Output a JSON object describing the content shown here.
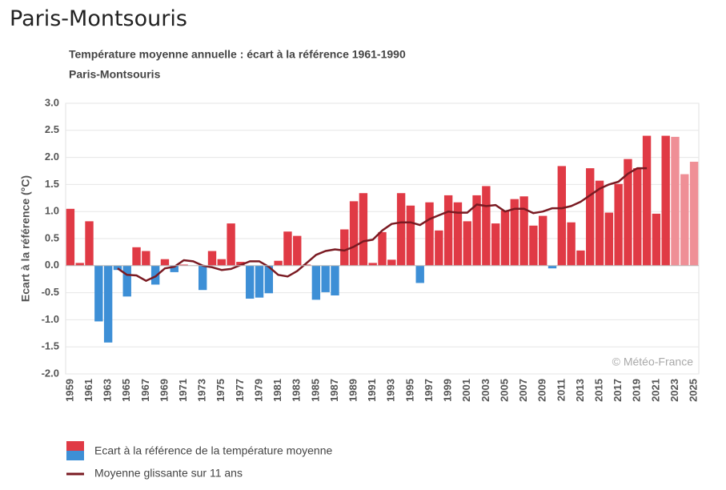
{
  "header": {
    "title": "Paris-Montsouris"
  },
  "chart_data": {
    "type": "bar",
    "title": "Température moyenne annuelle : écart à la référence 1961-1990",
    "subtitle": "Paris-Montsouris",
    "y_label": "Ecart à la référence (°C)",
    "annotation": "© Météo-France",
    "categories": [
      "1959",
      null,
      "1961",
      null,
      "1963",
      null,
      "1965",
      null,
      "1967",
      null,
      "1969",
      null,
      "1971",
      null,
      "1973",
      null,
      "1975",
      null,
      "1977",
      null,
      "1979",
      null,
      "1981",
      null,
      "1983",
      null,
      "1985",
      null,
      "1987",
      null,
      "1989",
      null,
      "1991",
      null,
      "1993",
      null,
      "1995",
      null,
      "1997",
      null,
      "1999",
      null,
      "2001",
      null,
      "2003",
      null,
      "2005",
      null,
      "2007",
      null,
      "2009",
      null,
      "2011",
      null,
      "2013",
      null,
      "2015",
      null,
      "2017",
      null,
      "2019",
      null,
      "2021",
      null,
      "2023",
      null,
      "2025"
    ],
    "series": [
      {
        "name": "Ecart à la référence de la température moyenne",
        "legend_colors": [
          "#e03a45",
          "#3d8fd6"
        ],
        "values": [
          1.05,
          0.05,
          0.82,
          -1.03,
          -1.42,
          -0.08,
          -0.57,
          0.34,
          0.27,
          -0.35,
          0.12,
          -0.12,
          0.02,
          0.0,
          -0.45,
          0.27,
          0.12,
          0.78,
          0.07,
          -0.61,
          -0.59,
          -0.51,
          0.09,
          0.63,
          0.55,
          0.02,
          -0.63,
          -0.49,
          -0.55,
          0.67,
          1.19,
          1.34,
          0.05,
          0.62,
          0.11,
          1.34,
          1.11,
          -0.32,
          1.17,
          0.65,
          1.3,
          1.17,
          0.82,
          1.3,
          1.47,
          0.78,
          1.02,
          1.23,
          1.28,
          0.74,
          0.92,
          -0.05,
          1.84,
          0.8,
          0.28,
          1.8,
          1.57,
          0.98,
          1.51,
          1.97,
          1.8,
          2.4,
          0.96,
          2.4,
          2.38,
          1.69,
          1.92
        ],
        "colors": [
          "#e03a45",
          "#e03a45",
          "#e03a45",
          "#3d8fd6",
          "#3d8fd6",
          "#3d8fd6",
          "#3d8fd6",
          "#e03a45",
          "#e03a45",
          "#3d8fd6",
          "#e03a45",
          "#3d8fd6",
          "#e03a45",
          "#e03a45",
          "#3d8fd6",
          "#e03a45",
          "#e03a45",
          "#e03a45",
          "#e03a45",
          "#3d8fd6",
          "#3d8fd6",
          "#3d8fd6",
          "#e03a45",
          "#e03a45",
          "#e03a45",
          "#e03a45",
          "#3d8fd6",
          "#3d8fd6",
          "#3d8fd6",
          "#e03a45",
          "#e03a45",
          "#e03a45",
          "#e03a45",
          "#e03a45",
          "#e03a45",
          "#e03a45",
          "#e03a45",
          "#3d8fd6",
          "#e03a45",
          "#e03a45",
          "#e03a45",
          "#e03a45",
          "#e03a45",
          "#e03a45",
          "#e03a45",
          "#e03a45",
          "#e03a45",
          "#e03a45",
          "#e03a45",
          "#e03a45",
          "#e03a45",
          "#3d8fd6",
          "#e03a45",
          "#e03a45",
          "#e03a45",
          "#e03a45",
          "#e03a45",
          "#e03a45",
          "#e03a45",
          "#e03a45",
          "#e03a45",
          "#e03a45",
          "#e03a45",
          "#e03a45",
          "#ef8f96",
          "#ef8f96",
          "#ef8f96"
        ]
      },
      {
        "name": "Moyenne glissante sur 11 ans",
        "type": "line",
        "color": "#7a1a22",
        "values": [
          null,
          null,
          null,
          null,
          null,
          -0.05,
          -0.17,
          -0.18,
          -0.28,
          -0.2,
          -0.05,
          -0.02,
          0.1,
          0.08,
          0.0,
          -0.03,
          -0.08,
          -0.06,
          0.01,
          0.08,
          0.08,
          -0.02,
          -0.17,
          -0.2,
          -0.1,
          0.05,
          0.2,
          0.27,
          0.3,
          0.28,
          0.35,
          0.45,
          0.48,
          0.65,
          0.77,
          0.8,
          0.8,
          0.75,
          0.86,
          0.93,
          1.0,
          0.98,
          0.98,
          1.13,
          1.1,
          1.12,
          1.0,
          1.05,
          1.05,
          0.97,
          1.0,
          1.06,
          1.06,
          1.1,
          1.18,
          1.3,
          1.42,
          1.5,
          1.55,
          1.7,
          1.8,
          1.8,
          null,
          null,
          null,
          null,
          null
        ]
      }
    ],
    "ylim": [
      -2,
      3
    ],
    "yticks": [
      {
        "value": -2,
        "label": "-2.0"
      },
      -1.5,
      {
        "value": -1,
        "label": "-1.0"
      },
      -0.5,
      {
        "value": 0,
        "label": "0.0"
      },
      0.5,
      {
        "value": 1,
        "label": "1.0"
      },
      1.5,
      {
        "value": 2,
        "label": "2.0"
      },
      2.5,
      {
        "value": 3,
        "label": "3.0"
      }
    ],
    "grid": true
  }
}
